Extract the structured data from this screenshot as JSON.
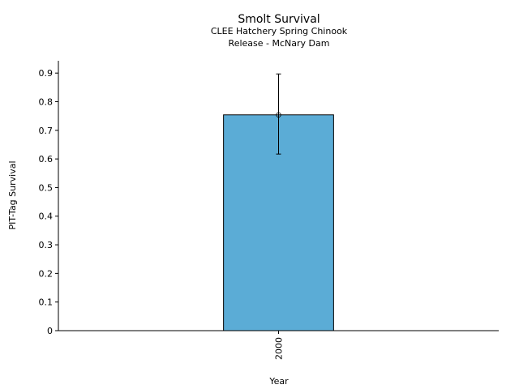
{
  "chart_data": {
    "type": "bar",
    "title": "Smolt Survival",
    "subtitle": [
      "CLEE Hatchery Spring Chinook",
      "Release - McNary Dam"
    ],
    "xlabel": "Year",
    "ylabel": "PIT-Tag Survival",
    "categories": [
      "2000"
    ],
    "values": [
      0.754
    ],
    "error_low": [
      0.617
    ],
    "error_high": [
      0.897
    ],
    "ylim": [
      0,
      0.943
    ],
    "yticks": [
      0,
      0.1,
      0.2,
      0.3,
      0.4,
      0.5,
      0.6,
      0.7,
      0.8,
      0.9
    ],
    "ytick_labels": [
      "0",
      "0.1",
      "0.2",
      "0.3",
      "0.4",
      "0.5",
      "0.6",
      "0.7",
      "0.8",
      "0.9"
    ],
    "bar_color": "#5bacd6",
    "grid": false
  }
}
